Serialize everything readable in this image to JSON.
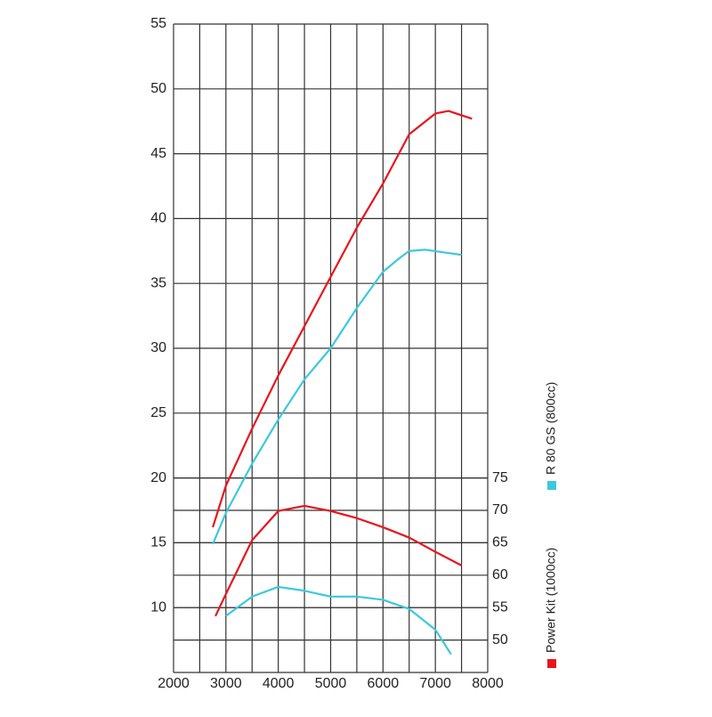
{
  "chart_data": {
    "type": "line",
    "xlim": [
      2000,
      8000
    ],
    "xticks": [
      2000,
      3000,
      4000,
      5000,
      6000,
      7000,
      8000
    ],
    "x_minor_grid": [
      2500,
      3500,
      4500,
      5500,
      6500,
      7500
    ],
    "ylim": [
      5,
      55
    ],
    "yticks": [
      10,
      15,
      20,
      25,
      30,
      35,
      40,
      45,
      50,
      55
    ],
    "y2lim": [
      45,
      145
    ],
    "y2ticks": [
      50,
      55,
      60,
      65,
      70,
      75
    ],
    "grid": true,
    "legend_position": "right",
    "series": [
      {
        "name": "Power Kit (1000cc)",
        "color": "#e8141e",
        "x": [
          2750,
          3000,
          3500,
          4000,
          5000,
          5500,
          6000,
          6500,
          7000,
          7250,
          7700
        ],
        "values": [
          16.2,
          19.4,
          23.8,
          27.9,
          35.5,
          39.3,
          42.7,
          46.5,
          48.1,
          48.3,
          47.7
        ]
      },
      {
        "name": "R 80 GS (800cc)",
        "color": "#3cc8dc",
        "x": [
          2750,
          3000,
          3500,
          4000,
          4500,
          5000,
          5500,
          6000,
          6300,
          6500,
          6800,
          7500
        ],
        "values": [
          14.9,
          17.3,
          21.1,
          24.5,
          27.6,
          30.0,
          33.1,
          35.9,
          36.9,
          37.5,
          37.6,
          37.2
        ]
      },
      {
        "color": "#e8141e",
        "axis": "y2",
        "x": [
          2800,
          3000,
          3500,
          4000,
          4500,
          5000,
          5500,
          6000,
          6500,
          7000,
          7500
        ],
        "values": [
          53.7,
          57.1,
          65.4,
          69.9,
          70.7,
          69.9,
          68.8,
          67.4,
          65.8,
          63.6,
          61.5
        ]
      },
      {
        "color": "#3cc8dc",
        "axis": "y2",
        "x": [
          3000,
          3500,
          4000,
          4500,
          5000,
          5500,
          6000,
          6500,
          7000,
          7300
        ],
        "values": [
          53.7,
          56.7,
          58.2,
          57.6,
          56.7,
          56.7,
          56.2,
          54.8,
          51.6,
          47.8
        ]
      }
    ]
  }
}
